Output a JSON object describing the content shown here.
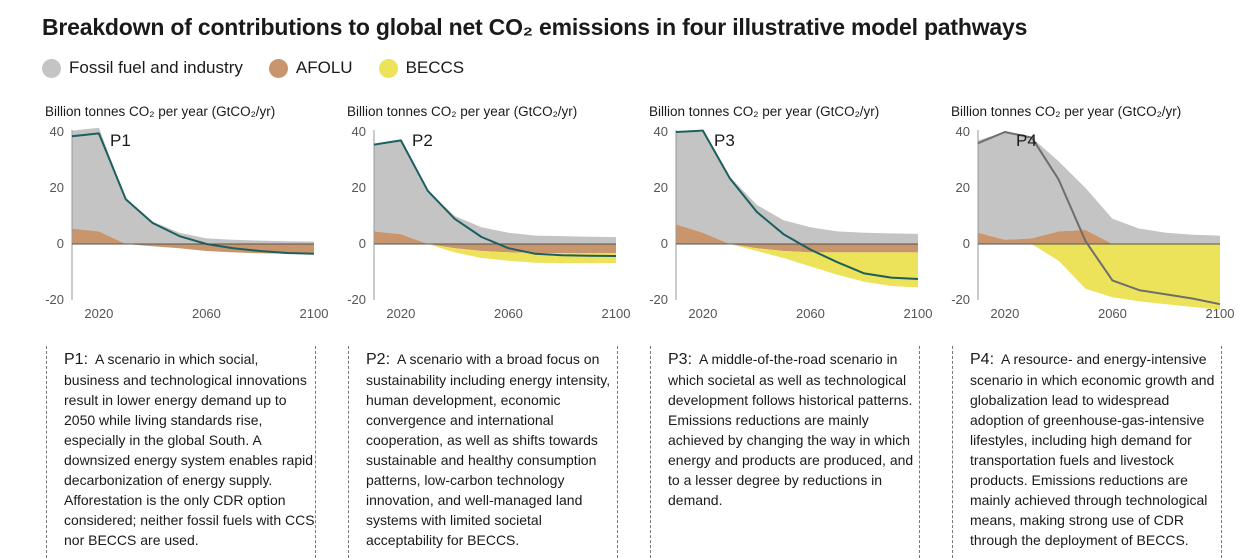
{
  "title": "Breakdown of contributions to global net CO₂ emissions in four illustrative model pathways",
  "legend": [
    {
      "label": "Fossil fuel and industry",
      "color": "#c4c4c4"
    },
    {
      "label": "AFOLU",
      "color": "#c9956c"
    },
    {
      "label": "BECCS",
      "color": "#ece35a"
    }
  ],
  "colors": {
    "fossil": "#c4c4c4",
    "afolu": "#c9956c",
    "beccs": "#ece35a",
    "net_teal": "#1d5e5e",
    "net_grey": "#6e6e6e",
    "axis": "#999999"
  },
  "chart_data": [
    {
      "type": "area",
      "panel_label": "P1",
      "ylabel": "Billion tonnes CO₂ per year (GtCO₂/yr)",
      "ylim": [
        -20,
        40
      ],
      "xlim": [
        2010,
        2100
      ],
      "yticks": [
        "40",
        "20",
        "0",
        "-20"
      ],
      "ytick_values": [
        40,
        20,
        0,
        -20
      ],
      "xticks": [
        "2020",
        "2060",
        "2100"
      ],
      "xtick_values": [
        2020,
        2060,
        2100
      ],
      "x": [
        2010,
        2020,
        2030,
        2040,
        2050,
        2060,
        2070,
        2080,
        2090,
        2100
      ],
      "series": [
        {
          "key": "fossil",
          "values": [
            35,
            37,
            16,
            8,
            4,
            2,
            1.5,
            1.2,
            1.0,
            0.9
          ]
        },
        {
          "key": "afolu",
          "values": [
            5.5,
            4.5,
            0,
            -0.8,
            -1.5,
            -2.5,
            -3,
            -3.3,
            -3.5,
            -3.5
          ]
        },
        {
          "key": "beccs",
          "values": [
            0,
            0,
            0,
            0,
            0,
            0,
            0,
            0,
            0,
            0
          ]
        }
      ],
      "net": [
        38.5,
        39.5,
        16,
        7.5,
        2.8,
        0,
        -1.5,
        -2.5,
        -3.2,
        -3.5
      ],
      "net_color_key": "net_teal",
      "note_label": "P1:",
      "note": "A scenario in which social, business and technological innovations result in lower energy demand up to 2050 while living standards rise, especially in the global South. A downsized energy system enables rapid decarbonization of energy supply. Afforestation is the only CDR option considered; neither fossil fuels with CCS nor BECCS are used."
    },
    {
      "type": "area",
      "panel_label": "P2",
      "ylabel": "Billion tonnes CO₂ per year (GtCO₂/yr)",
      "ylim": [
        -20,
        40
      ],
      "xlim": [
        2010,
        2100
      ],
      "yticks": [
        "40",
        "20",
        "0",
        "-20"
      ],
      "ytick_values": [
        40,
        20,
        0,
        -20
      ],
      "xticks": [
        "2020",
        "2060",
        "2100"
      ],
      "xtick_values": [
        2020,
        2060,
        2100
      ],
      "x": [
        2010,
        2020,
        2030,
        2040,
        2050,
        2060,
        2070,
        2080,
        2090,
        2100
      ],
      "series": [
        {
          "key": "fossil",
          "values": [
            31,
            33.5,
            19,
            10,
            6,
            4,
            3,
            2.8,
            2.6,
            2.5
          ]
        },
        {
          "key": "afolu",
          "values": [
            4.5,
            3.5,
            0,
            -1.5,
            -2.5,
            -3,
            -3.2,
            -3.3,
            -3.3,
            -3.3
          ]
        },
        {
          "key": "beccs",
          "values": [
            0,
            0,
            0,
            -1.5,
            -2.5,
            -3,
            -3.5,
            -3.5,
            -3.5,
            -3.5
          ]
        }
      ],
      "net": [
        35.5,
        37,
        19,
        9,
        2.5,
        -1.5,
        -3.5,
        -4,
        -4.2,
        -4.3
      ],
      "net_color_key": "net_teal",
      "note_label": "P2:",
      "note": "A scenario with a broad focus on sustainability including energy intensity, human development, economic convergence and international cooperation, as well as shifts towards sustainable and healthy consumption patterns, low-carbon technology innovation, and well-managed land systems with limited societal acceptability for BECCS."
    },
    {
      "type": "area",
      "panel_label": "P3",
      "ylabel": "Billion tonnes CO₂ per year (GtCO₂/yr)",
      "ylim": [
        -20,
        40
      ],
      "xlim": [
        2010,
        2100
      ],
      "yticks": [
        "40",
        "20",
        "0",
        "-20"
      ],
      "ytick_values": [
        40,
        20,
        0,
        -20
      ],
      "xticks": [
        "2020",
        "2060",
        "2100"
      ],
      "xtick_values": [
        2020,
        2060,
        2100
      ],
      "x": [
        2010,
        2020,
        2030,
        2040,
        2050,
        2060,
        2070,
        2080,
        2090,
        2100
      ],
      "series": [
        {
          "key": "fossil",
          "values": [
            33,
            36,
            24,
            14,
            8.5,
            6,
            4.5,
            4,
            3.8,
            3.6
          ]
        },
        {
          "key": "afolu",
          "values": [
            7,
            4,
            0,
            -1.5,
            -2.5,
            -3,
            -3,
            -3,
            -3,
            -3
          ]
        },
        {
          "key": "beccs",
          "values": [
            0,
            0,
            0,
            -1,
            -2.5,
            -5,
            -8,
            -10.5,
            -12,
            -12.5
          ]
        }
      ],
      "net": [
        40,
        40.5,
        23.5,
        11.5,
        3.5,
        -2,
        -6.5,
        -10.5,
        -12,
        -12.5
      ],
      "net_color_key": "net_teal",
      "note_label": "P3:",
      "note": "A middle-of-the-road scenario in which societal as well as technological development follows historical patterns. Emissions reductions are mainly achieved by changing the way in which energy and products are produced, and to a lesser degree by reductions in demand."
    },
    {
      "type": "area",
      "panel_label": "P4",
      "ylabel": "Billion tonnes CO₂ per year (GtCO₂/yr)",
      "ylim": [
        -20,
        40
      ],
      "xlim": [
        2010,
        2100
      ],
      "yticks": [
        "40",
        "20",
        "0",
        "-20"
      ],
      "ytick_values": [
        40,
        20,
        0,
        -20
      ],
      "xticks": [
        "2020",
        "2060",
        "2100"
      ],
      "xtick_values": [
        2020,
        2060,
        2100
      ],
      "x": [
        2010,
        2020,
        2030,
        2040,
        2050,
        2060,
        2070,
        2080,
        2090,
        2100
      ],
      "series": [
        {
          "key": "fossil",
          "values": [
            33,
            38.5,
            36,
            25,
            15,
            9,
            5.5,
            4,
            3.3,
            3
          ]
        },
        {
          "key": "afolu",
          "values": [
            4,
            1.5,
            2,
            4.5,
            5,
            0,
            0,
            0,
            0,
            0
          ]
        },
        {
          "key": "beccs",
          "values": [
            0,
            0,
            0,
            -6,
            -16,
            -19,
            -20.5,
            -21.5,
            -22.5,
            -23.5
          ]
        }
      ],
      "net": [
        36,
        40,
        38,
        23,
        1,
        -13,
        -16.5,
        -18,
        -19.5,
        -21.5
      ],
      "net_color_key": "net_grey",
      "note_label": "P4:",
      "note": "A resource- and energy-intensive scenario in which economic growth and globalization lead to widespread adoption of greenhouse-gas-intensive lifestyles, including high demand for transportation fuels and livestock products. Emissions reductions are mainly achieved through technological means, making strong use of CDR through the deployment of BECCS."
    }
  ]
}
